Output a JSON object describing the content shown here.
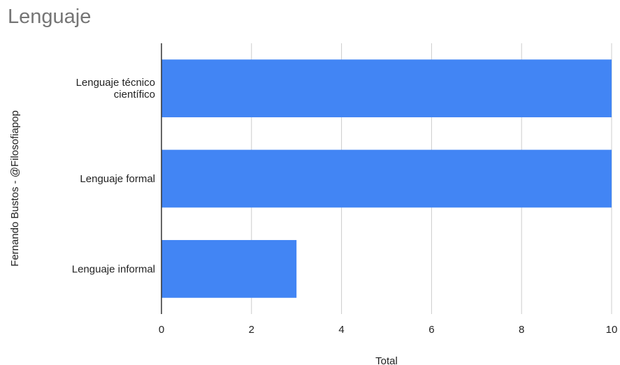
{
  "chart_data": {
    "type": "bar",
    "orientation": "horizontal",
    "title": "Lenguaje",
    "xlabel": "Total",
    "ylabel": "Fernando Bustos - @Filosofiapop",
    "categories": [
      [
        "Lenguaje técnico",
        "científico"
      ],
      [
        "Lenguaje formal"
      ],
      [
        "Lenguaje informal"
      ]
    ],
    "values": [
      10,
      10,
      3
    ],
    "xlim": [
      0,
      10
    ],
    "xticks": [
      0,
      2,
      4,
      6,
      8,
      10
    ],
    "grid": true,
    "colors": {
      "bar": "#4285f4",
      "grid": "#cccccc",
      "axis": "#333333"
    }
  }
}
